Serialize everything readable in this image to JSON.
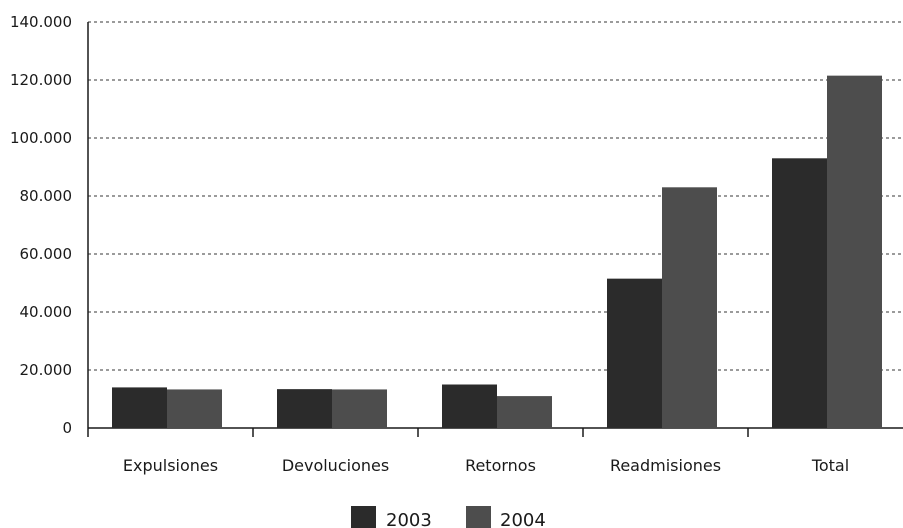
{
  "chart_data": {
    "type": "bar",
    "title": "",
    "xlabel": "",
    "ylabel": "",
    "categories": [
      "Expulsiones",
      "Devoluciones",
      "Retornos",
      "Readmisiones",
      "Total"
    ],
    "series": [
      {
        "name": "2003",
        "color": "#2b2b2b",
        "values": [
          14000,
          13400,
          15000,
          51500,
          93000
        ]
      },
      {
        "name": "2004",
        "color": "#4d4d4d",
        "values": [
          13300,
          13300,
          11000,
          83000,
          121500
        ]
      }
    ],
    "ylim": [
      0,
      140000
    ],
    "yticks": [
      0,
      20000,
      40000,
      60000,
      80000,
      100000,
      120000,
      140000
    ],
    "ytick_labels": [
      "0",
      "20.000",
      "40.000",
      "60.000",
      "80.000",
      "100.000",
      "120.000",
      "140.000"
    ],
    "grid": true,
    "legend_position": "bottom"
  }
}
